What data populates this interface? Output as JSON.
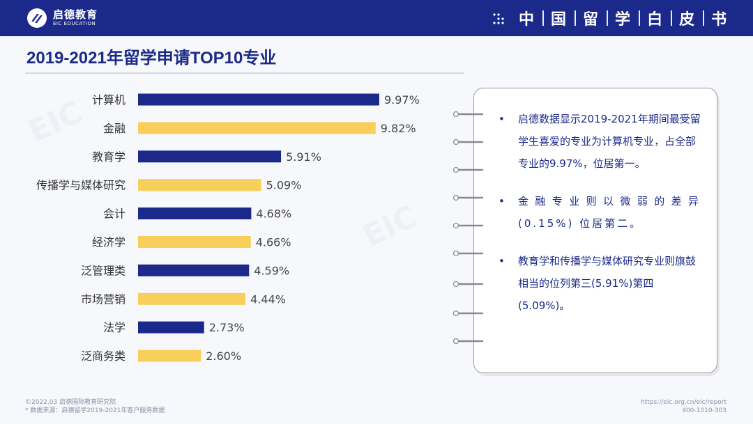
{
  "header": {
    "logo_cn": "启德教育",
    "logo_en": "EIC EDUCATION",
    "title_chars": [
      "中",
      "国",
      "留",
      "学",
      "白",
      "皮",
      "书"
    ],
    "color": "#1b2a8a"
  },
  "page_title": "2019-2021年留学申请TOP10专业",
  "chart_data": {
    "type": "bar",
    "orientation": "horizontal",
    "categories": [
      "计算机",
      "金融",
      "教育学",
      "传播学与媒体研究",
      "会计",
      "经济学",
      "泛管理类",
      "市场营销",
      "法学",
      "泛商务类"
    ],
    "values": [
      9.97,
      9.82,
      5.91,
      5.09,
      4.68,
      4.66,
      4.59,
      4.44,
      2.73,
      2.6
    ],
    "value_labels": [
      "9.97%",
      "9.82%",
      "5.91%",
      "5.09%",
      "4.68%",
      "4.66%",
      "4.59%",
      "4.44%",
      "2.73%",
      "2.60%"
    ],
    "colors": [
      "#1b2a8a",
      "#f7cf5a",
      "#1b2a8a",
      "#f7cf5a",
      "#1b2a8a",
      "#f7cf5a",
      "#1b2a8a",
      "#f7cf5a",
      "#1b2a8a",
      "#f7cf5a"
    ],
    "xlim": [
      0,
      10
    ],
    "grid": false,
    "title": "",
    "xlabel": "",
    "ylabel": ""
  },
  "notes": [
    {
      "bullet": "•",
      "text": "启德数据显示2019-2021年期间最受留学生喜爱的专业为计算机专业，占全部专业的9.97%，位居第一。"
    },
    {
      "bullet": "•",
      "text": "金融专业则以微弱的差异(0.15%) 位居第二。"
    },
    {
      "bullet": "•",
      "text": "教育学和传播学与媒体研究专业则旗鼓相当的位列第三(5.91%)第四(5.09%)。"
    }
  ],
  "footer": {
    "copyright": "©2022.03 启德国际教育研究院",
    "source": "* 数据来源：启德留学2019-2021年客户服务数据",
    "url": "https://eic.org.cn/eic/report",
    "phone": "400-1010-303"
  }
}
